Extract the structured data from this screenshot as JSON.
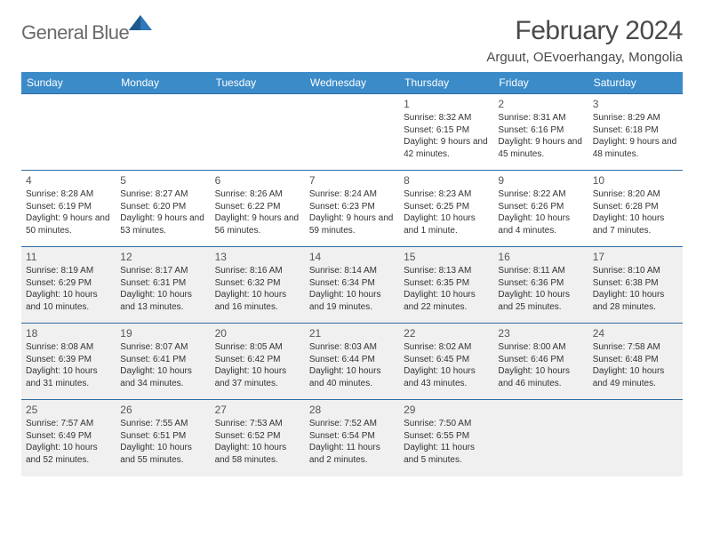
{
  "brand": {
    "word1": "General",
    "word2": "Blue"
  },
  "title": "February 2024",
  "location": "Arguut, OEvoerhangay, Mongolia",
  "colors": {
    "header_bg": "#3b8bc9",
    "header_text": "#ffffff",
    "rule": "#2e6da4",
    "alt_row": "#f0f0f0",
    "text": "#333333",
    "logo_gray": "#6a6a6a",
    "logo_blue": "#2e77b8"
  },
  "day_headers": [
    "Sunday",
    "Monday",
    "Tuesday",
    "Wednesday",
    "Thursday",
    "Friday",
    "Saturday"
  ],
  "weeks": [
    [
      null,
      null,
      null,
      null,
      {
        "n": "1",
        "sr": "8:32 AM",
        "ss": "6:15 PM",
        "dl": "9 hours and 42 minutes."
      },
      {
        "n": "2",
        "sr": "8:31 AM",
        "ss": "6:16 PM",
        "dl": "9 hours and 45 minutes."
      },
      {
        "n": "3",
        "sr": "8:29 AM",
        "ss": "6:18 PM",
        "dl": "9 hours and 48 minutes."
      }
    ],
    [
      {
        "n": "4",
        "sr": "8:28 AM",
        "ss": "6:19 PM",
        "dl": "9 hours and 50 minutes."
      },
      {
        "n": "5",
        "sr": "8:27 AM",
        "ss": "6:20 PM",
        "dl": "9 hours and 53 minutes."
      },
      {
        "n": "6",
        "sr": "8:26 AM",
        "ss": "6:22 PM",
        "dl": "9 hours and 56 minutes."
      },
      {
        "n": "7",
        "sr": "8:24 AM",
        "ss": "6:23 PM",
        "dl": "9 hours and 59 minutes."
      },
      {
        "n": "8",
        "sr": "8:23 AM",
        "ss": "6:25 PM",
        "dl": "10 hours and 1 minute."
      },
      {
        "n": "9",
        "sr": "8:22 AM",
        "ss": "6:26 PM",
        "dl": "10 hours and 4 minutes."
      },
      {
        "n": "10",
        "sr": "8:20 AM",
        "ss": "6:28 PM",
        "dl": "10 hours and 7 minutes."
      }
    ],
    [
      {
        "n": "11",
        "sr": "8:19 AM",
        "ss": "6:29 PM",
        "dl": "10 hours and 10 minutes."
      },
      {
        "n": "12",
        "sr": "8:17 AM",
        "ss": "6:31 PM",
        "dl": "10 hours and 13 minutes."
      },
      {
        "n": "13",
        "sr": "8:16 AM",
        "ss": "6:32 PM",
        "dl": "10 hours and 16 minutes."
      },
      {
        "n": "14",
        "sr": "8:14 AM",
        "ss": "6:34 PM",
        "dl": "10 hours and 19 minutes."
      },
      {
        "n": "15",
        "sr": "8:13 AM",
        "ss": "6:35 PM",
        "dl": "10 hours and 22 minutes."
      },
      {
        "n": "16",
        "sr": "8:11 AM",
        "ss": "6:36 PM",
        "dl": "10 hours and 25 minutes."
      },
      {
        "n": "17",
        "sr": "8:10 AM",
        "ss": "6:38 PM",
        "dl": "10 hours and 28 minutes."
      }
    ],
    [
      {
        "n": "18",
        "sr": "8:08 AM",
        "ss": "6:39 PM",
        "dl": "10 hours and 31 minutes."
      },
      {
        "n": "19",
        "sr": "8:07 AM",
        "ss": "6:41 PM",
        "dl": "10 hours and 34 minutes."
      },
      {
        "n": "20",
        "sr": "8:05 AM",
        "ss": "6:42 PM",
        "dl": "10 hours and 37 minutes."
      },
      {
        "n": "21",
        "sr": "8:03 AM",
        "ss": "6:44 PM",
        "dl": "10 hours and 40 minutes."
      },
      {
        "n": "22",
        "sr": "8:02 AM",
        "ss": "6:45 PM",
        "dl": "10 hours and 43 minutes."
      },
      {
        "n": "23",
        "sr": "8:00 AM",
        "ss": "6:46 PM",
        "dl": "10 hours and 46 minutes."
      },
      {
        "n": "24",
        "sr": "7:58 AM",
        "ss": "6:48 PM",
        "dl": "10 hours and 49 minutes."
      }
    ],
    [
      {
        "n": "25",
        "sr": "7:57 AM",
        "ss": "6:49 PM",
        "dl": "10 hours and 52 minutes."
      },
      {
        "n": "26",
        "sr": "7:55 AM",
        "ss": "6:51 PM",
        "dl": "10 hours and 55 minutes."
      },
      {
        "n": "27",
        "sr": "7:53 AM",
        "ss": "6:52 PM",
        "dl": "10 hours and 58 minutes."
      },
      {
        "n": "28",
        "sr": "7:52 AM",
        "ss": "6:54 PM",
        "dl": "11 hours and 2 minutes."
      },
      {
        "n": "29",
        "sr": "7:50 AM",
        "ss": "6:55 PM",
        "dl": "11 hours and 5 minutes."
      },
      null,
      null
    ]
  ],
  "labels": {
    "sunrise": "Sunrise: ",
    "sunset": "Sunset: ",
    "daylight": "Daylight: "
  }
}
